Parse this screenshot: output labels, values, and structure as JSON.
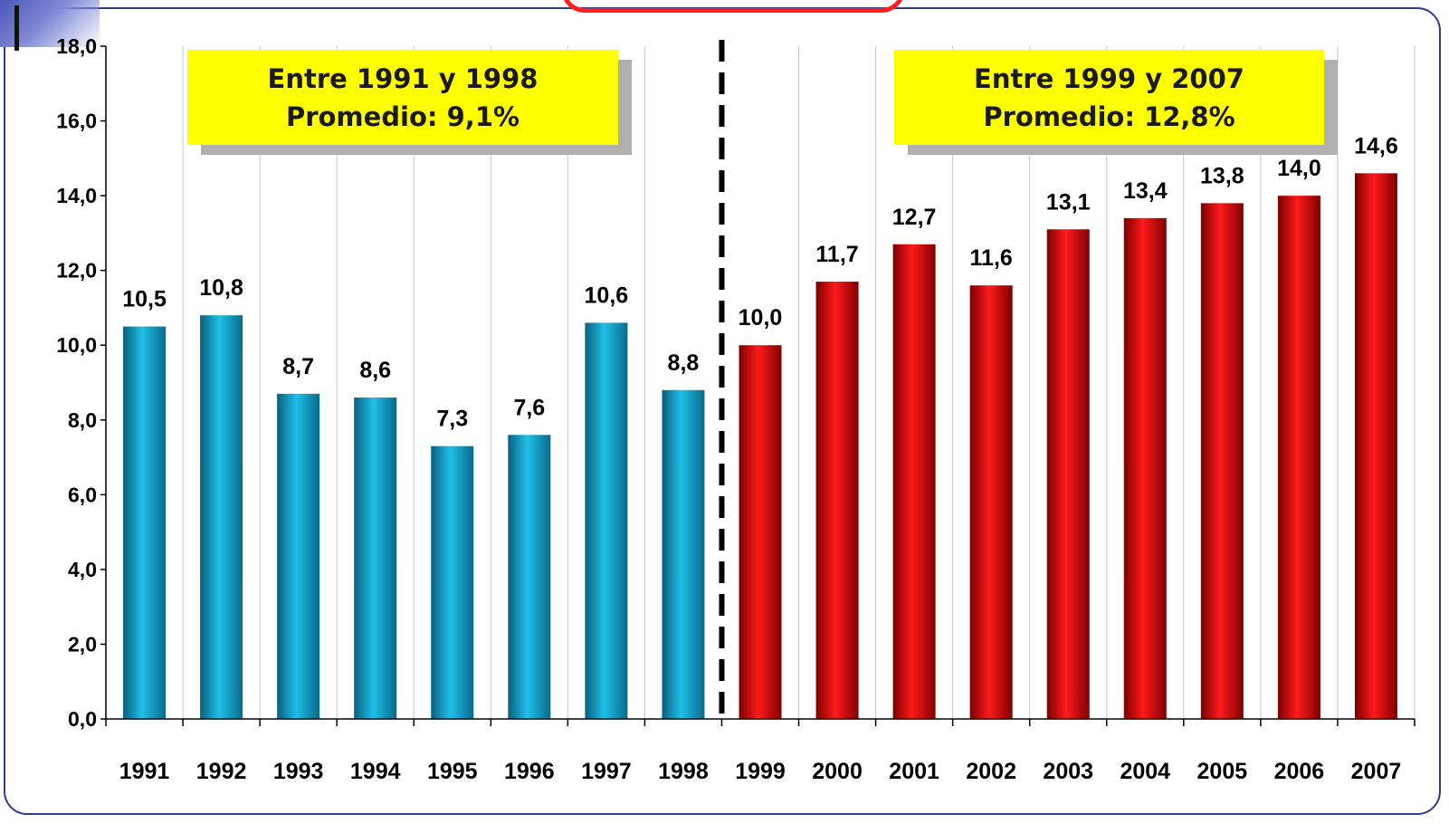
{
  "chart_data": {
    "type": "bar",
    "categories": [
      "1991",
      "1992",
      "1993",
      "1994",
      "1995",
      "1996",
      "1997",
      "1998",
      "1999",
      "2000",
      "2001",
      "2002",
      "2003",
      "2004",
      "2005",
      "2006",
      "2007"
    ],
    "values": [
      10.5,
      10.8,
      8.7,
      8.6,
      7.3,
      7.6,
      10.6,
      8.8,
      10.0,
      11.7,
      12.7,
      11.6,
      13.1,
      13.4,
      13.8,
      14.0,
      14.6
    ],
    "value_labels": [
      "10,5",
      "10,8",
      "8,7",
      "8,6",
      "7,3",
      "7,6",
      "10,6",
      "8,8",
      "10,0",
      "11,7",
      "12,7",
      "11,6",
      "13,1",
      "13,4",
      "13,8",
      "14,0",
      "14,6"
    ],
    "period_colors": {
      "1991-1998": "#1fb6dc",
      "1999-2007": "#e00000"
    },
    "ylim": [
      0,
      18
    ],
    "y_ticks": [
      "0,0",
      "2,0",
      "4,0",
      "6,0",
      "8,0",
      "10,0",
      "12,0",
      "14,0",
      "16,0",
      "18,0"
    ],
    "divider_between": [
      "1998",
      "1999"
    ],
    "grid": "vertical",
    "annotations": [
      {
        "line1": "Entre 1991 y 1998",
        "line2": "Promedio: 9,1%"
      },
      {
        "line1": "Entre 1999 y 2007",
        "line2": "Promedio: 12,8%"
      }
    ]
  }
}
